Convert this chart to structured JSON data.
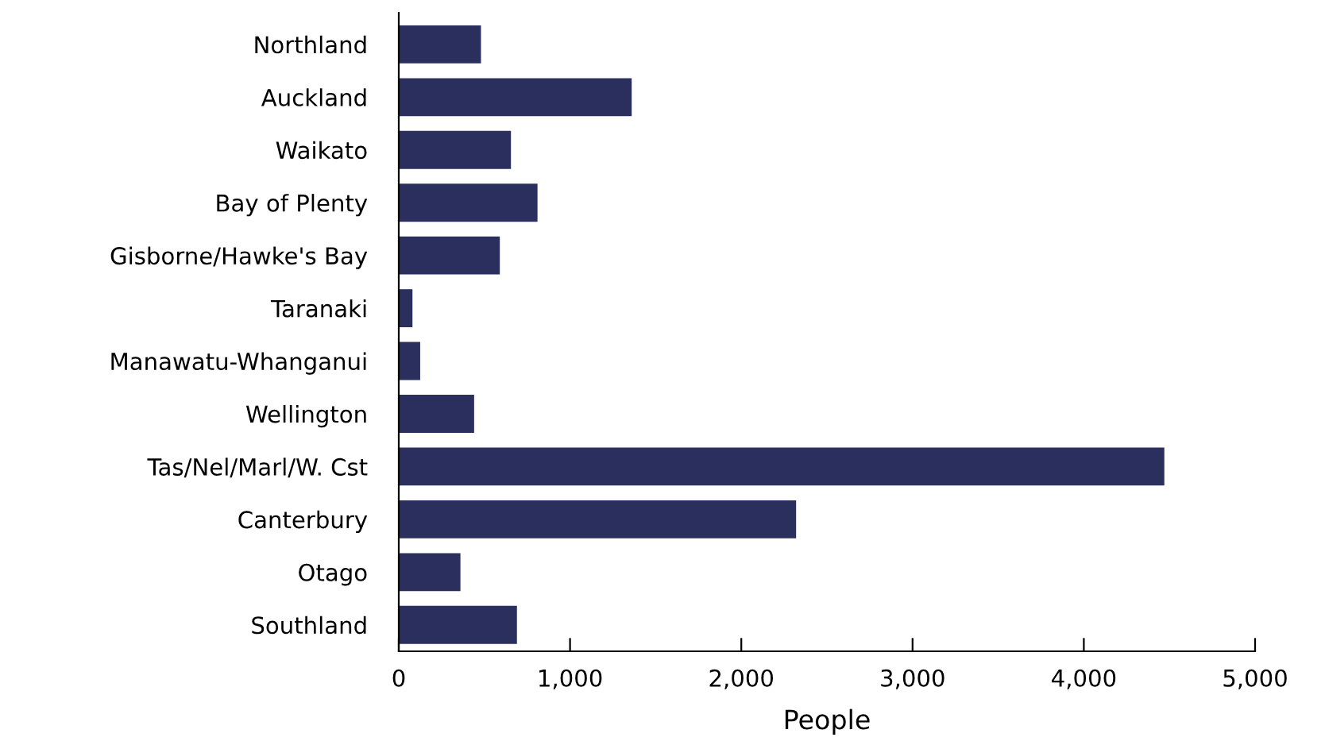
{
  "chart_data": {
    "type": "bar",
    "orientation": "horizontal",
    "xlabel": "People",
    "categories": [
      "Northland",
      "Auckland",
      "Waikato",
      "Bay of Plenty",
      "Gisborne/Hawke's Bay",
      "Taranaki",
      "Manawatu-Whanganui",
      "Wellington",
      "Tas/Nel/Marl/W. Cst",
      "Canterbury",
      "Otago",
      "Southland"
    ],
    "values": [
      480,
      1360,
      655,
      810,
      590,
      80,
      125,
      440,
      4470,
      2320,
      360,
      690
    ],
    "color": "#2a2f5e",
    "xlim": [
      0,
      5000
    ],
    "xticks": [
      {
        "value": 0,
        "label": "0"
      },
      {
        "value": 1000,
        "label": "1,000"
      },
      {
        "value": 2000,
        "label": "2,000"
      },
      {
        "value": 3000,
        "label": "3,000"
      },
      {
        "value": 4000,
        "label": "4,000"
      },
      {
        "value": 5000,
        "label": "5,000"
      }
    ],
    "grid": false,
    "legend": false
  }
}
